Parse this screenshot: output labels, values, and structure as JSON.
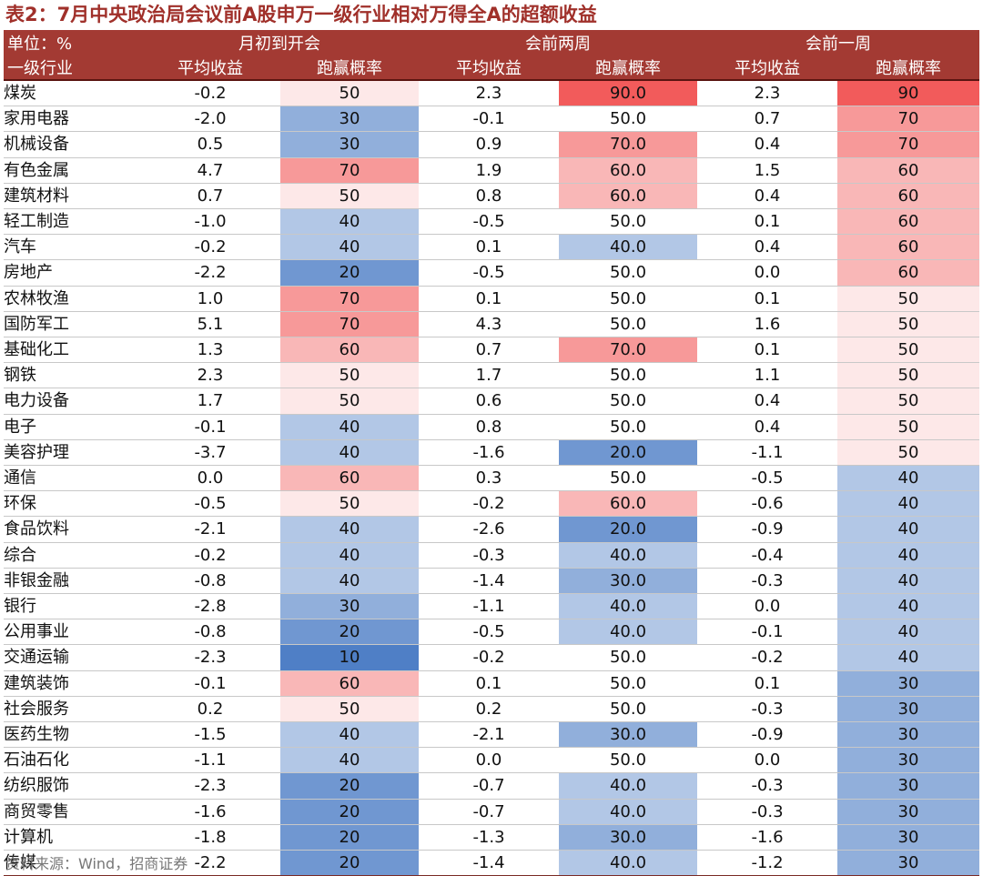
{
  "title": "表2：7月中央政治局会议前A股申万一级行业相对万得全A的超额收益",
  "header": {
    "unit": "单位：%",
    "industry": "一级行业",
    "groups": [
      "月初到开会",
      "会前两周",
      "会前一周"
    ],
    "avg_return": "平均收益",
    "win_prob": "跑赢概率"
  },
  "colors": {
    "header_bg": "#a33a33",
    "high": "#f25b5b",
    "low": "#4f7fc6"
  },
  "rows": [
    {
      "name": "煤炭",
      "r1": "-0.2",
      "p1": "50",
      "r2": "2.3",
      "p2": "90.0",
      "r3": "2.3",
      "p3": "90"
    },
    {
      "name": "家用电器",
      "r1": "-2.0",
      "p1": "30",
      "r2": "-0.1",
      "p2": "50.0",
      "r3": "0.7",
      "p3": "70"
    },
    {
      "name": "机械设备",
      "r1": "0.5",
      "p1": "30",
      "r2": "0.9",
      "p2": "70.0",
      "r3": "0.4",
      "p3": "70"
    },
    {
      "name": "有色金属",
      "r1": "4.7",
      "p1": "70",
      "r2": "1.9",
      "p2": "60.0",
      "r3": "1.5",
      "p3": "60"
    },
    {
      "name": "建筑材料",
      "r1": "0.7",
      "p1": "50",
      "r2": "0.8",
      "p2": "60.0",
      "r3": "0.4",
      "p3": "60"
    },
    {
      "name": "轻工制造",
      "r1": "-1.0",
      "p1": "40",
      "r2": "-0.5",
      "p2": "50.0",
      "r3": "0.1",
      "p3": "60"
    },
    {
      "name": "汽车",
      "r1": "-0.2",
      "p1": "40",
      "r2": "0.1",
      "p2": "40.0",
      "r3": "0.4",
      "p3": "60"
    },
    {
      "name": "房地产",
      "r1": "-2.2",
      "p1": "20",
      "r2": "-0.5",
      "p2": "50.0",
      "r3": "0.0",
      "p3": "60"
    },
    {
      "name": "农林牧渔",
      "r1": "1.0",
      "p1": "70",
      "r2": "0.1",
      "p2": "50.0",
      "r3": "0.1",
      "p3": "50"
    },
    {
      "name": "国防军工",
      "r1": "5.1",
      "p1": "70",
      "r2": "4.3",
      "p2": "50.0",
      "r3": "1.6",
      "p3": "50"
    },
    {
      "name": "基础化工",
      "r1": "1.3",
      "p1": "60",
      "r2": "0.7",
      "p2": "70.0",
      "r3": "0.1",
      "p3": "50"
    },
    {
      "name": "钢铁",
      "r1": "2.3",
      "p1": "50",
      "r2": "1.7",
      "p2": "50.0",
      "r3": "1.1",
      "p3": "50"
    },
    {
      "name": "电力设备",
      "r1": "1.7",
      "p1": "50",
      "r2": "0.6",
      "p2": "50.0",
      "r3": "0.4",
      "p3": "50"
    },
    {
      "name": "电子",
      "r1": "-0.1",
      "p1": "40",
      "r2": "0.8",
      "p2": "50.0",
      "r3": "0.4",
      "p3": "50"
    },
    {
      "name": "美容护理",
      "r1": "-3.7",
      "p1": "40",
      "r2": "-1.6",
      "p2": "20.0",
      "r3": "-1.1",
      "p3": "50"
    },
    {
      "name": "通信",
      "r1": "0.0",
      "p1": "60",
      "r2": "0.3",
      "p2": "50.0",
      "r3": "-0.5",
      "p3": "40"
    },
    {
      "name": "环保",
      "r1": "-0.5",
      "p1": "50",
      "r2": "-0.2",
      "p2": "60.0",
      "r3": "-0.6",
      "p3": "40"
    },
    {
      "name": "食品饮料",
      "r1": "-2.1",
      "p1": "40",
      "r2": "-2.6",
      "p2": "20.0",
      "r3": "-0.9",
      "p3": "40"
    },
    {
      "name": "综合",
      "r1": "-0.2",
      "p1": "40",
      "r2": "-0.3",
      "p2": "40.0",
      "r3": "-0.4",
      "p3": "40"
    },
    {
      "name": "非银金融",
      "r1": "-0.8",
      "p1": "40",
      "r2": "-1.4",
      "p2": "30.0",
      "r3": "-0.3",
      "p3": "40"
    },
    {
      "name": "银行",
      "r1": "-2.8",
      "p1": "30",
      "r2": "-1.1",
      "p2": "40.0",
      "r3": "0.0",
      "p3": "40"
    },
    {
      "name": "公用事业",
      "r1": "-0.8",
      "p1": "20",
      "r2": "-0.5",
      "p2": "40.0",
      "r3": "-0.1",
      "p3": "40"
    },
    {
      "name": "交通运输",
      "r1": "-2.3",
      "p1": "10",
      "r2": "-0.2",
      "p2": "50.0",
      "r3": "-0.2",
      "p3": "40"
    },
    {
      "name": "建筑装饰",
      "r1": "-0.1",
      "p1": "60",
      "r2": "0.1",
      "p2": "50.0",
      "r3": "0.1",
      "p3": "30"
    },
    {
      "name": "社会服务",
      "r1": "0.2",
      "p1": "50",
      "r2": "0.2",
      "p2": "50.0",
      "r3": "-0.3",
      "p3": "30"
    },
    {
      "name": "医药生物",
      "r1": "-1.5",
      "p1": "40",
      "r2": "-2.1",
      "p2": "30.0",
      "r3": "-0.9",
      "p3": "30"
    },
    {
      "name": "石油石化",
      "r1": "-1.1",
      "p1": "40",
      "r2": "0.0",
      "p2": "50.0",
      "r3": "0.0",
      "p3": "30"
    },
    {
      "name": "纺织服饰",
      "r1": "-2.3",
      "p1": "20",
      "r2": "-0.7",
      "p2": "40.0",
      "r3": "-0.3",
      "p3": "30"
    },
    {
      "name": "商贸零售",
      "r1": "-1.6",
      "p1": "20",
      "r2": "-0.7",
      "p2": "40.0",
      "r3": "-0.3",
      "p3": "30"
    },
    {
      "name": "计算机",
      "r1": "-1.8",
      "p1": "20",
      "r2": "-1.3",
      "p2": "30.0",
      "r3": "-1.6",
      "p3": "30"
    },
    {
      "name": "传媒",
      "r1": "-2.2",
      "p1": "20",
      "r2": "-1.4",
      "p2": "40.0",
      "r3": "-1.2",
      "p3": "30"
    }
  ],
  "source": "资料来源：Wind，招商证券"
}
